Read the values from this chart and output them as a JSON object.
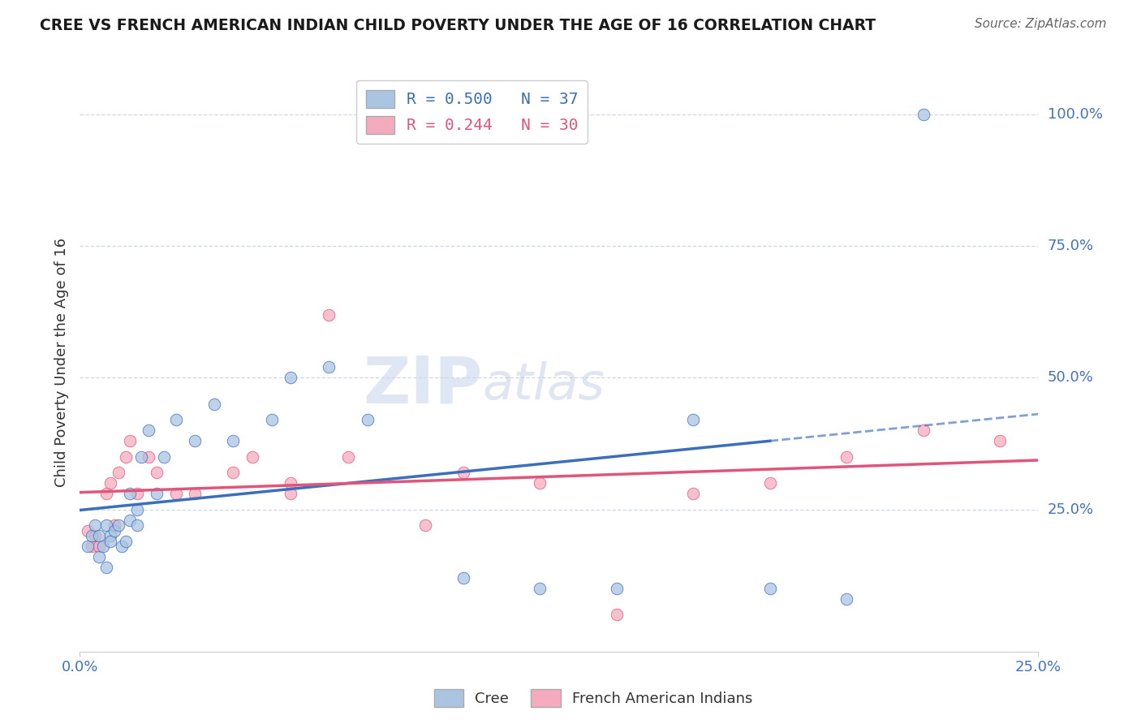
{
  "title": "CREE VS FRENCH AMERICAN INDIAN CHILD POVERTY UNDER THE AGE OF 16 CORRELATION CHART",
  "source": "Source: ZipAtlas.com",
  "ylabel": "Child Poverty Under the Age of 16",
  "legend_cree": "R = 0.500   N = 37",
  "legend_french": "R = 0.244   N = 30",
  "legend_label_cree": "Cree",
  "legend_label_french": "French American Indians",
  "cree_color": "#aac4e2",
  "french_color": "#f5abbe",
  "cree_line_color": "#3b6fba",
  "french_line_color": "#e0557a",
  "watermark_zip": "ZIP",
  "watermark_atlas": "atlas",
  "xlim": [
    0.0,
    0.25
  ],
  "ylim": [
    -0.02,
    1.08
  ],
  "cree_scatter_x": [
    0.002,
    0.003,
    0.004,
    0.005,
    0.005,
    0.006,
    0.007,
    0.007,
    0.008,
    0.008,
    0.009,
    0.01,
    0.011,
    0.012,
    0.013,
    0.013,
    0.015,
    0.015,
    0.016,
    0.018,
    0.02,
    0.022,
    0.025,
    0.03,
    0.035,
    0.04,
    0.05,
    0.055,
    0.065,
    0.075,
    0.1,
    0.12,
    0.14,
    0.16,
    0.18,
    0.2,
    0.22
  ],
  "cree_scatter_y": [
    0.18,
    0.2,
    0.22,
    0.16,
    0.2,
    0.18,
    0.22,
    0.14,
    0.2,
    0.19,
    0.21,
    0.22,
    0.18,
    0.19,
    0.23,
    0.28,
    0.25,
    0.22,
    0.35,
    0.4,
    0.28,
    0.35,
    0.42,
    0.38,
    0.45,
    0.38,
    0.42,
    0.5,
    0.52,
    0.42,
    0.12,
    0.1,
    0.1,
    0.42,
    0.1,
    0.08,
    1.0
  ],
  "french_scatter_x": [
    0.002,
    0.003,
    0.004,
    0.005,
    0.007,
    0.008,
    0.009,
    0.01,
    0.012,
    0.013,
    0.015,
    0.018,
    0.02,
    0.025,
    0.03,
    0.04,
    0.045,
    0.055,
    0.065,
    0.09,
    0.1,
    0.12,
    0.14,
    0.16,
    0.18,
    0.2,
    0.22,
    0.24,
    0.055,
    0.07
  ],
  "french_scatter_y": [
    0.21,
    0.18,
    0.2,
    0.18,
    0.28,
    0.3,
    0.22,
    0.32,
    0.35,
    0.38,
    0.28,
    0.35,
    0.32,
    0.28,
    0.28,
    0.32,
    0.35,
    0.3,
    0.62,
    0.22,
    0.32,
    0.3,
    0.05,
    0.28,
    0.3,
    0.35,
    0.4,
    0.38,
    0.28,
    0.35
  ],
  "background_color": "#ffffff",
  "grid_color": "#d0d8e8",
  "title_color": "#1a1a1a",
  "axis_label_color": "#4472c4",
  "right_label_color": "#4472c4"
}
